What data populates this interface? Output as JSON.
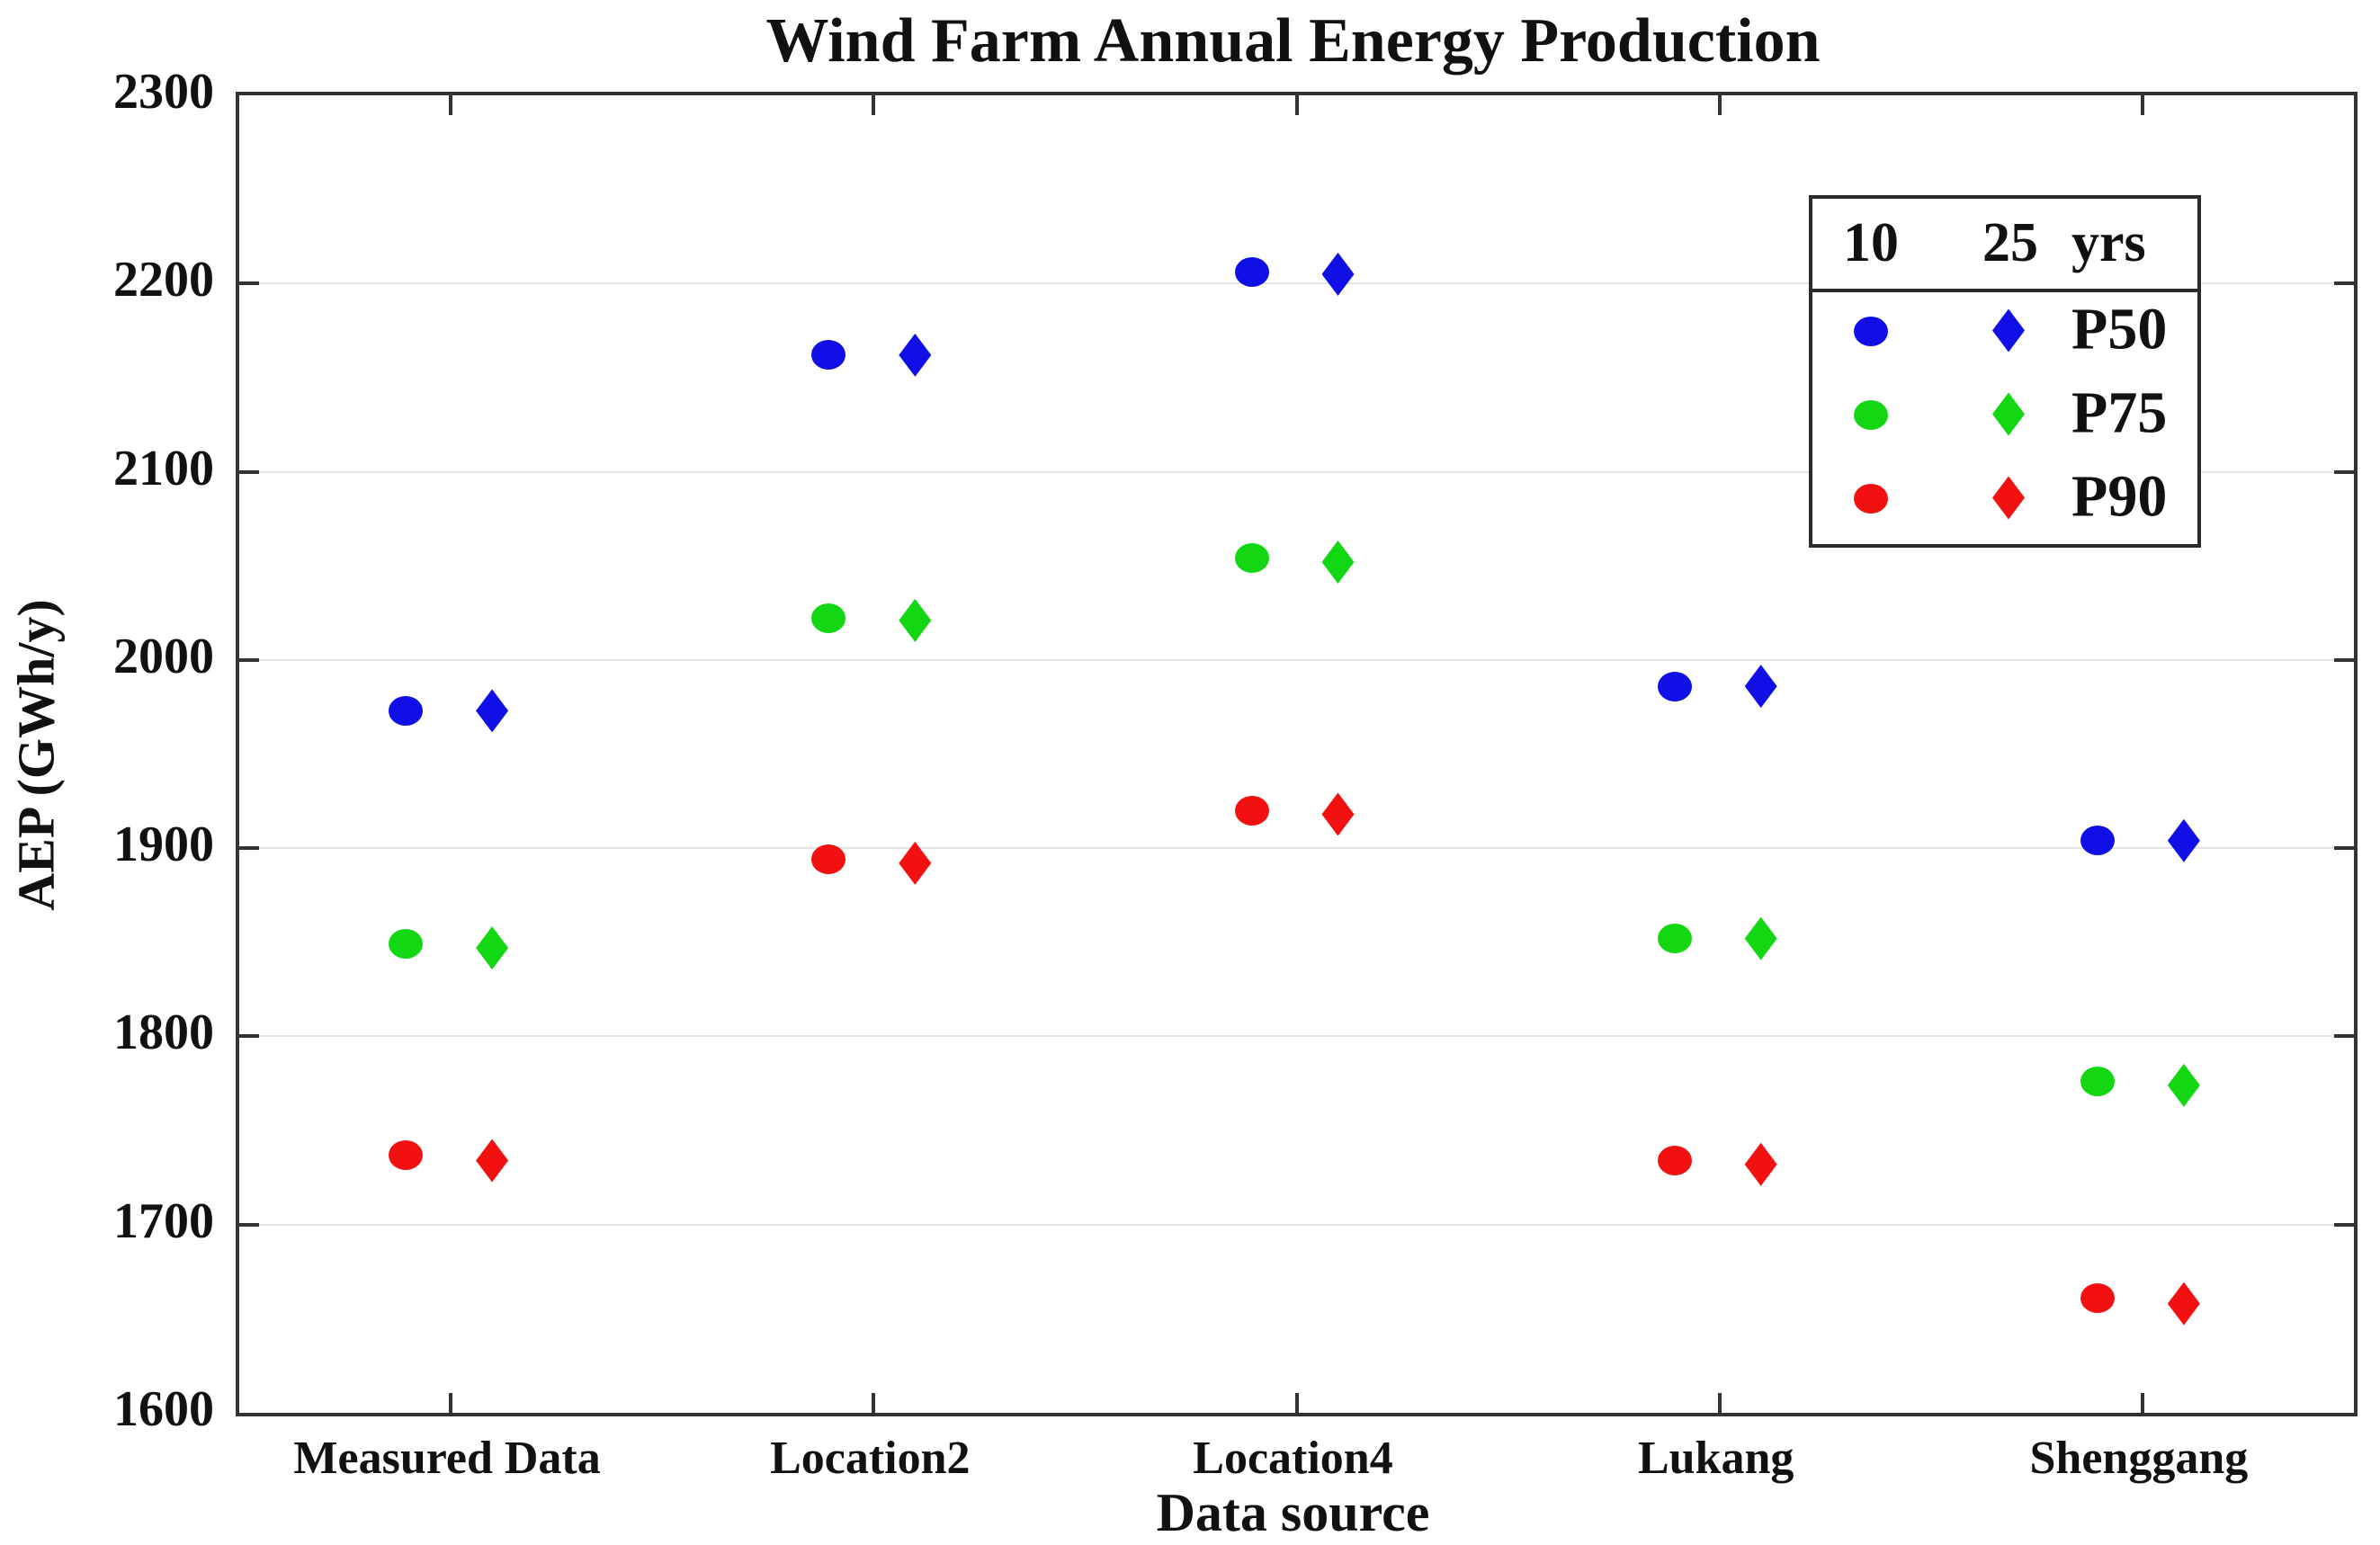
{
  "figure": {
    "title": "Wind Farm Annual Energy Production",
    "xlabel": "Data source",
    "ylabel": "AEP (GWh/y)"
  },
  "legend": {
    "col_headers": [
      "10",
      "25",
      "yrs"
    ],
    "rows": [
      {
        "label": "P50"
      },
      {
        "label": "P75"
      },
      {
        "label": "P90"
      }
    ]
  },
  "chart_data": {
    "type": "scatter",
    "title": "Wind Farm Annual Energy Production",
    "xlabel": "Data source",
    "ylabel": "AEP (GWh/y)",
    "ylim": [
      1600,
      2300
    ],
    "yticks": [
      1600,
      1700,
      1800,
      1900,
      2000,
      2100,
      2200,
      2300
    ],
    "grid": "horizontal",
    "legend_position": "upper right",
    "categories": [
      "Measured Data",
      "Location2",
      "Location4",
      "Lukang",
      "Shenggang"
    ],
    "series": [
      {
        "name": "P50 10 yrs",
        "percentile": "P50",
        "duration": "10",
        "marker": "circle",
        "color": "#0f0fe6",
        "values": [
          1973,
          2162,
          2206,
          1986,
          1904
        ]
      },
      {
        "name": "P50 25 yrs",
        "percentile": "P50",
        "duration": "25",
        "marker": "diamond",
        "color": "#0f0fe6",
        "values": [
          1973,
          2162,
          2205,
          1986,
          1904
        ]
      },
      {
        "name": "P75 10 yrs",
        "percentile": "P75",
        "duration": "10",
        "marker": "circle",
        "color": "#14d714",
        "values": [
          1849,
          2022,
          2054,
          1852,
          1776
        ]
      },
      {
        "name": "P75 25 yrs",
        "percentile": "P75",
        "duration": "25",
        "marker": "diamond",
        "color": "#14d714",
        "values": [
          1847,
          2021,
          2052,
          1852,
          1774
        ]
      },
      {
        "name": "P90 10 yrs",
        "percentile": "P90",
        "duration": "10",
        "marker": "circle",
        "color": "#f21111",
        "values": [
          1737,
          1894,
          1920,
          1734,
          1661
        ]
      },
      {
        "name": "P90 25 yrs",
        "percentile": "P90",
        "duration": "25",
        "marker": "diamond",
        "color": "#f21111",
        "values": [
          1734,
          1892,
          1918,
          1732,
          1658
        ]
      }
    ]
  }
}
